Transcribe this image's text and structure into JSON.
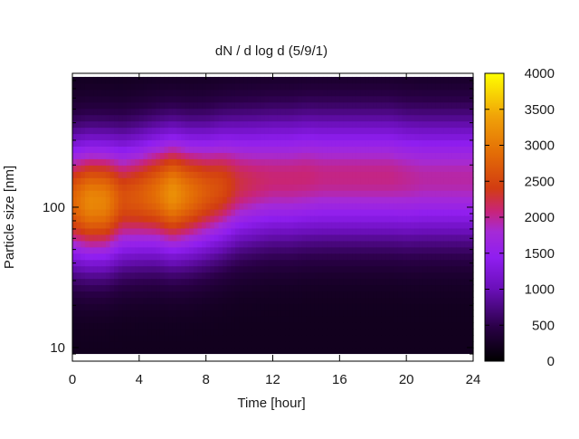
{
  "chart_data": {
    "type": "heatmap",
    "title": "dN / d log d (5/9/1)",
    "xlabel": "Time [hour]",
    "ylabel": "Particle size [nm]",
    "x_range": [
      0,
      24
    ],
    "x_ticks": [
      0,
      4,
      8,
      12,
      16,
      20,
      24
    ],
    "y_scale": "log",
    "y_range": [
      8,
      900
    ],
    "y_ticks": [
      10,
      100
    ],
    "colorbar": {
      "colormap": "black-purple-red-orange-yellow (gnuplot style)",
      "range": [
        0,
        4000
      ],
      "ticks": [
        0,
        500,
        1000,
        1500,
        2000,
        2500,
        3000,
        3500,
        4000
      ]
    },
    "value_units": "dN/dlogd",
    "time_hours": [
      0,
      1,
      2,
      3,
      4,
      5,
      6,
      7,
      8,
      9,
      10,
      11,
      12,
      13,
      14,
      15,
      16,
      17,
      18,
      19,
      20,
      21,
      22,
      23,
      24
    ],
    "peak_diameter_nm": [
      110,
      110,
      110,
      115,
      120,
      125,
      125,
      125,
      130,
      140,
      150,
      155,
      160,
      160,
      165,
      165,
      165,
      165,
      165,
      165,
      160,
      160,
      160,
      160,
      160
    ],
    "peak_concentration": [
      2600,
      2950,
      2900,
      2400,
      2500,
      2700,
      3050,
      2750,
      2500,
      2350,
      2050,
      1950,
      1900,
      1900,
      1900,
      1850,
      1850,
      1850,
      1850,
      1850,
      1800,
      1750,
      1750,
      1750,
      1750
    ],
    "peak_width_log10": 0.3
  }
}
